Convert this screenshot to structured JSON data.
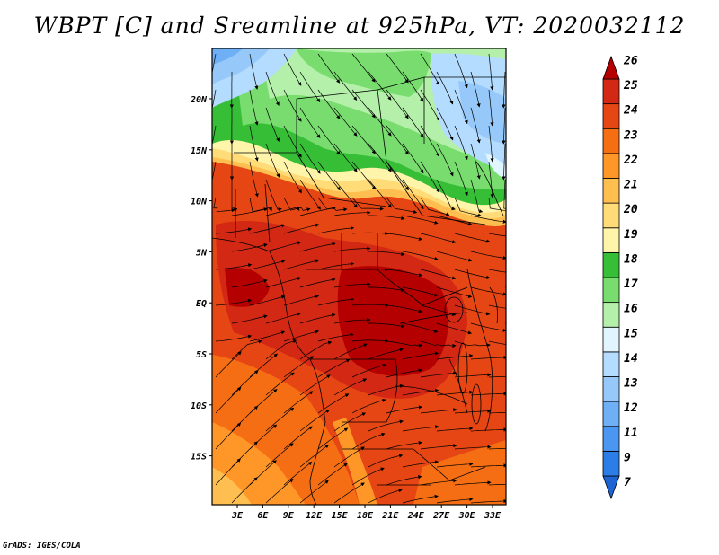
{
  "title": "WBPT [C] and Sreamline at 925hPa, VT: 2020032112",
  "credit": "GrADS: IGES/COLA",
  "map": {
    "lat_labels": [
      "20N",
      "15N",
      "10N",
      "5N",
      "EQ",
      "5S",
      "10S",
      "15S"
    ],
    "lon_labels": [
      "3E",
      "6E",
      "9E",
      "12E",
      "15E",
      "18E",
      "21E",
      "24E",
      "27E",
      "30E",
      "33E"
    ]
  },
  "colorbar": {
    "labels": [
      "7",
      "9",
      "11",
      "12",
      "13",
      "14",
      "15",
      "16",
      "17",
      "18",
      "19",
      "20",
      "21",
      "22",
      "23",
      "24",
      "25",
      "26"
    ],
    "colors": [
      "#1e64d2",
      "#2d7de6",
      "#4b96f0",
      "#6eaff5",
      "#96c8fa",
      "#b4dcff",
      "#e1f5ff",
      "#b4f0aa",
      "#78dc6e",
      "#37be37",
      "#fff5aa",
      "#ffdc78",
      "#ffbe50",
      "#ff9628",
      "#f56e14",
      "#e64614",
      "#d22814",
      "#b40000"
    ]
  }
}
